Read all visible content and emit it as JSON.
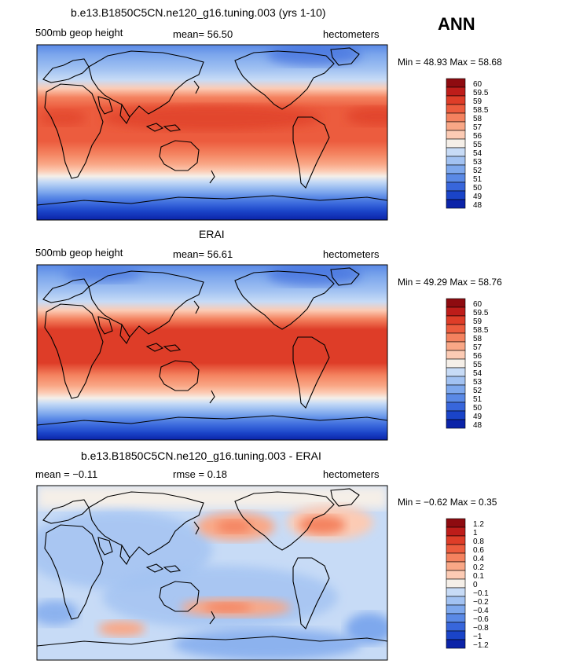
{
  "ann_label": "ANN",
  "panels": [
    {
      "title": "b.e13.B1850C5CN.ne120_g16.tuning.003 (yrs 1-10)",
      "left": "500mb geop height",
      "mid": "mean=   56.50",
      "right": "hectometers",
      "minmax": "Min =   48.93  Max =   58.68"
    },
    {
      "title": "ERAI",
      "left": "500mb geop height",
      "mid": "mean=   56.61",
      "right": "hectometers",
      "minmax": "Min =   49.29  Max =   58.76"
    },
    {
      "title": "b.e13.B1850C5CN.ne120_g16.tuning.003 - ERAI",
      "left": "mean =   −0.11",
      "mid": "rmse =    0.18",
      "right": "hectometers",
      "minmax": "Min =   −0.62  Max =    0.35"
    }
  ],
  "chart_data": [
    {
      "type": "heatmap",
      "title": "b.e13.B1850C5CN.ne120_g16.tuning.003 (yrs 1-10)",
      "variable": "500mb geop height",
      "units": "hectometers",
      "mean": 56.5,
      "min": 48.93,
      "max": 58.68,
      "levels": [
        48,
        49,
        50,
        51,
        52,
        53,
        54,
        55,
        56,
        57,
        58,
        58.5,
        59,
        59.5,
        60
      ],
      "level_labels": [
        "60",
        "59.5",
        "59",
        "58.5",
        "58",
        "57",
        "56",
        "55",
        "54",
        "53",
        "52",
        "51",
        "50",
        "49",
        "48"
      ],
      "colors": [
        "#8e0b10",
        "#be1d1a",
        "#de3d28",
        "#ec5c3e",
        "#f4825f",
        "#f9a786",
        "#fccbb4",
        "#f5efe8",
        "#c7dbf6",
        "#a2c2f2",
        "#7ea8ed",
        "#5a89e6",
        "#3866db",
        "#1a44c8",
        "#0b23a8"
      ]
    },
    {
      "type": "heatmap",
      "title": "ERAI",
      "variable": "500mb geop height",
      "units": "hectometers",
      "mean": 56.61,
      "min": 49.29,
      "max": 58.76,
      "levels": [
        48,
        49,
        50,
        51,
        52,
        53,
        54,
        55,
        56,
        57,
        58,
        58.5,
        59,
        59.5,
        60
      ],
      "level_labels": [
        "60",
        "59.5",
        "59",
        "58.5",
        "58",
        "57",
        "56",
        "55",
        "54",
        "53",
        "52",
        "51",
        "50",
        "49",
        "48"
      ],
      "colors": [
        "#8e0b10",
        "#be1d1a",
        "#de3d28",
        "#ec5c3e",
        "#f4825f",
        "#f9a786",
        "#fccbb4",
        "#f5efe8",
        "#c7dbf6",
        "#a2c2f2",
        "#7ea8ed",
        "#5a89e6",
        "#3866db",
        "#1a44c8",
        "#0b23a8"
      ]
    },
    {
      "type": "heatmap",
      "title": "b.e13.B1850C5CN.ne120_g16.tuning.003 - ERAI",
      "units": "hectometers",
      "mean": -0.11,
      "rmse": 0.18,
      "min": -0.62,
      "max": 0.35,
      "level_labels": [
        "1.2",
        "1",
        "0.8",
        "0.6",
        "0.4",
        "0.2",
        "0.1",
        "0",
        "−0.1",
        "−0.2",
        "−0.4",
        "−0.6",
        "−0.8",
        "−1",
        "−1.2"
      ],
      "colors": [
        "#8e0b10",
        "#be1d1a",
        "#de3d28",
        "#ec5c3e",
        "#f4825f",
        "#f9a786",
        "#fccbb4",
        "#f5efe8",
        "#c7dbf6",
        "#a2c2f2",
        "#7ea8ed",
        "#5a89e6",
        "#3866db",
        "#1a44c8",
        "#0b23a8"
      ]
    }
  ]
}
